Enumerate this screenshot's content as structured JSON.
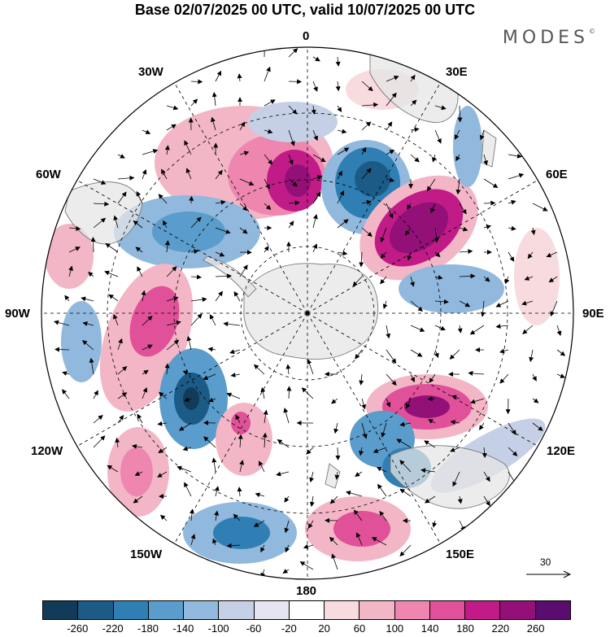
{
  "title": "Base 02/07/2025 00 UTC, valid 10/07/2025 00 UTC",
  "brand": "MODES",
  "brand_mark": "©",
  "longitude_labels": {
    "lon_0": "0",
    "lon_30e": "30E",
    "lon_60e": "60E",
    "lon_90e": "90E",
    "lon_120e": "120E",
    "lon_150e": "150E",
    "lon_180": "180",
    "lon_150w": "150W",
    "lon_120w": "120W",
    "lon_90w": "90W",
    "lon_60w": "60W",
    "lon_30w": "30W"
  },
  "vector_scale_label": "30",
  "colorbar": {
    "colors": [
      "#123a59",
      "#1c5b86",
      "#2f7fb4",
      "#5a9ccb",
      "#91b8dd",
      "#c5d0e7",
      "#e5e5f2",
      "#ffffff",
      "#f8dbdf",
      "#f3b6c6",
      "#ee86b0",
      "#e0519a",
      "#c01b86",
      "#921077",
      "#5a0d6e"
    ],
    "tick_labels": [
      "-260",
      "-220",
      "-180",
      "-140",
      "-100",
      "-60",
      "-20",
      "20",
      "60",
      "100",
      "140",
      "180",
      "220",
      "260"
    ]
  },
  "colors": {
    "continent": "#e6e6e6",
    "coast": "#7a7a7a",
    "grid": "#000000"
  }
}
